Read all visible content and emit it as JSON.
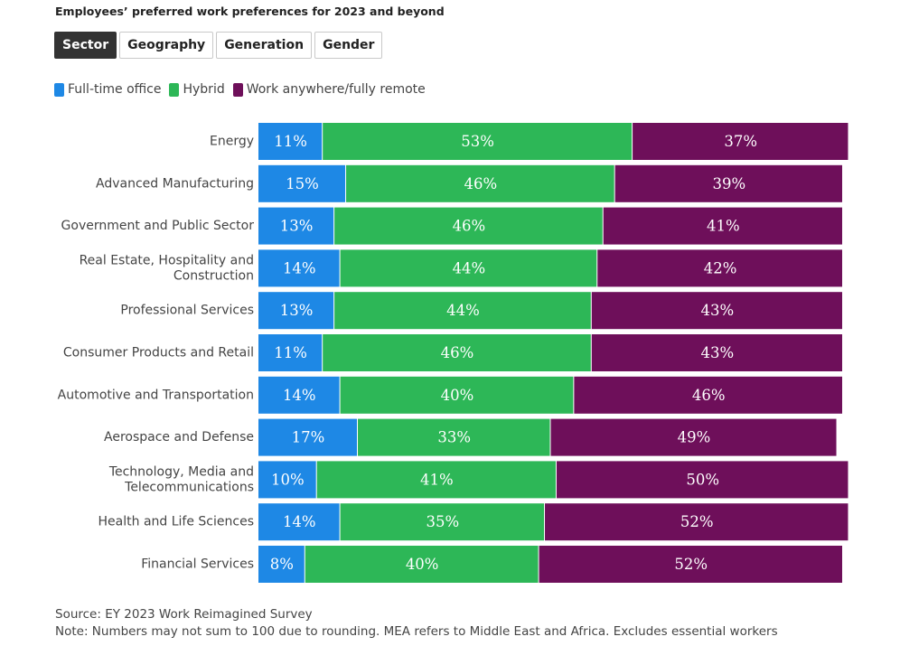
{
  "title": "Employees’ preferred work preferences for 2023 and beyond",
  "tabs": [
    {
      "label": "Sector",
      "active": true
    },
    {
      "label": "Geography",
      "active": false
    },
    {
      "label": "Generation",
      "active": false
    },
    {
      "label": "Gender",
      "active": false
    }
  ],
  "colors": {
    "office": "#1e88e5",
    "hybrid": "#2db757",
    "remote": "#6e0f5a"
  },
  "chart_data": {
    "type": "bar",
    "orientation": "horizontal-stacked",
    "series": [
      {
        "name": "Full-time office",
        "values": [
          11,
          15,
          13,
          14,
          13,
          11,
          14,
          17,
          10,
          14,
          8
        ]
      },
      {
        "name": "Hybrid",
        "values": [
          53,
          46,
          46,
          44,
          44,
          46,
          40,
          33,
          41,
          35,
          40
        ]
      },
      {
        "name": "Work anywhere/fully remote",
        "values": [
          37,
          39,
          41,
          42,
          43,
          43,
          46,
          49,
          50,
          52,
          52
        ]
      }
    ],
    "categories": [
      "Energy",
      "Advanced Manufacturing",
      "Government and Public Sector",
      "Real Estate, Hospitality and Construction",
      "Professional Services",
      "Consumer Products and Retail",
      "Automotive and Transportation",
      "Aerospace and Defense",
      "Technology, Media and Telecommunications",
      "Health and Life Sciences",
      "Financial Services"
    ],
    "category_label_lines": [
      [
        "Energy"
      ],
      [
        "Advanced Manufacturing"
      ],
      [
        "Government and Public Sector"
      ],
      [
        "Real Estate, Hospitality and",
        "Construction"
      ],
      [
        "Professional Services"
      ],
      [
        "Consumer Products and Retail"
      ],
      [
        "Automotive and Transportation"
      ],
      [
        "Aerospace and Defense"
      ],
      [
        "Technology, Media and",
        "Telecommunications"
      ],
      [
        "Health and Life Sciences"
      ],
      [
        "Financial Services"
      ]
    ],
    "value_suffix": "%",
    "legend_position": "top-left",
    "grid": false
  },
  "footer": {
    "source": "Source: EY 2023 Work Reimagined Survey",
    "note": "Note: Numbers may not sum to 100 due to rounding. MEA refers to Middle East and Africa. Excludes essential workers"
  }
}
